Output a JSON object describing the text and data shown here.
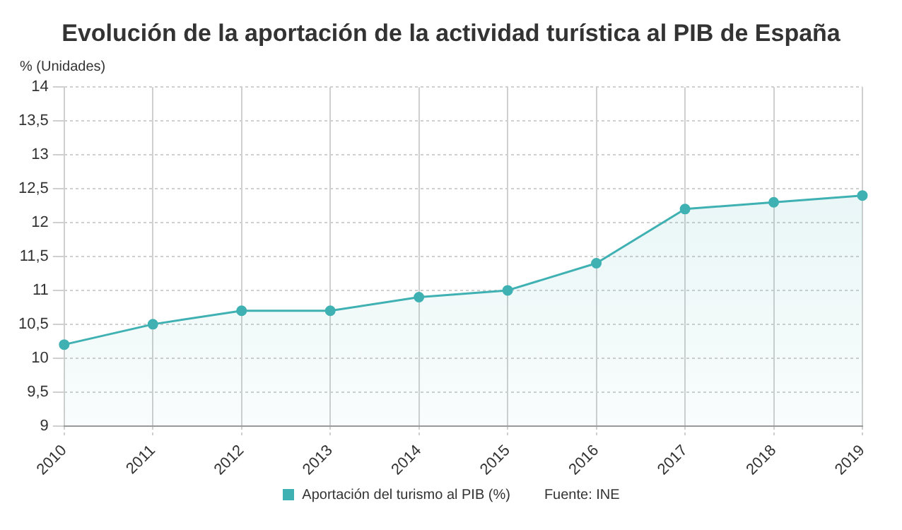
{
  "chart_data": {
    "type": "area",
    "title": "Evolución de la aportación de la actividad turística al PIB de España",
    "ylabel": "% (Unidades)",
    "categories": [
      "2010",
      "2011",
      "2012",
      "2013",
      "2014",
      "2015",
      "2016",
      "2017",
      "2018",
      "2019"
    ],
    "series": [
      {
        "name": "Aportación del turismo al PIB (%)",
        "color": "#3fb1b3",
        "values": [
          10.2,
          10.5,
          10.7,
          10.7,
          10.9,
          11.0,
          11.4,
          12.2,
          12.3,
          12.4
        ]
      }
    ],
    "ylim": [
      9,
      14
    ],
    "yticks": [
      9,
      {
        "value": 9.5,
        "label": "9,5"
      },
      10,
      {
        "value": 10.5,
        "label": "10,5"
      },
      11,
      {
        "value": 11.5,
        "label": "11,5"
      },
      12,
      {
        "value": 12.5,
        "label": "12,5"
      },
      13,
      {
        "value": 13.5,
        "label": "13,5"
      },
      14
    ],
    "grid": true,
    "legend": "bottom",
    "marker": "circle",
    "line_style": "solid",
    "annotations": [
      "Fuente: INE"
    ]
  }
}
